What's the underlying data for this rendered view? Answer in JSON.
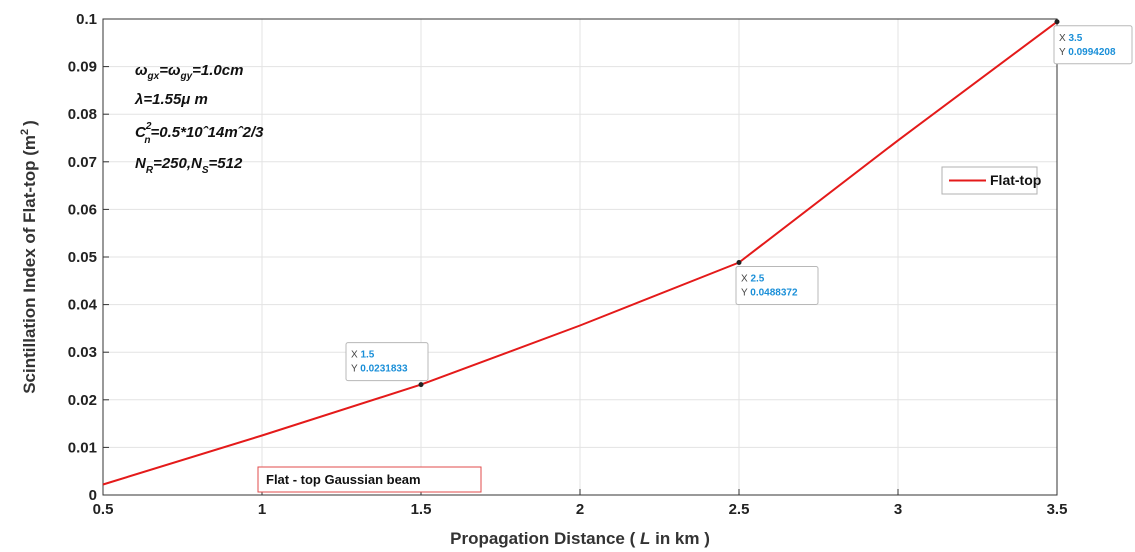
{
  "chart_data": {
    "type": "line",
    "xlabel_prefix": "Propagation Distance ( ",
    "xlabel_var": "L",
    "xlabel_suffix": " in  km )",
    "ylabel_main": "Scintillation Index of Flat-top (m",
    "ylabel_sup": "2",
    "ylabel_close": ")",
    "xlim": [
      0.5,
      3.5
    ],
    "ylim": [
      0,
      0.1
    ],
    "xticks": [
      0.5,
      1,
      1.5,
      2,
      2.5,
      3,
      3.5
    ],
    "xtick_labels": [
      "0.5",
      "1",
      "1.5",
      "2",
      "2.5",
      "3",
      "3.5"
    ],
    "yticks": [
      0,
      0.01,
      0.02,
      0.03,
      0.04,
      0.05,
      0.06,
      0.07,
      0.08,
      0.09,
      0.1
    ],
    "ytick_labels": [
      "0",
      "0.01",
      "0.02",
      "0.03",
      "0.04",
      "0.05",
      "0.06",
      "0.07",
      "0.08",
      "0.09",
      "0.1"
    ],
    "grid": true,
    "legend_position": "right",
    "series": [
      {
        "name": "Flat-top",
        "color": "#e41a1a",
        "x": [
          0.5,
          1.0,
          1.5,
          2.0,
          2.5,
          3.0,
          3.5
        ],
        "y": [
          0.0022,
          0.0125,
          0.0231833,
          0.0356,
          0.0488372,
          0.0745,
          0.0994208
        ]
      }
    ],
    "datatips": [
      {
        "x_key": "X",
        "x_val": "1.5",
        "y_key": "Y",
        "y_val": "0.0231833",
        "x": 1.5,
        "y": 0.0231833,
        "anchor": "above"
      },
      {
        "x_key": "X",
        "x_val": "2.5",
        "y_key": "Y",
        "y_val": "0.0488372",
        "x": 2.5,
        "y": 0.0488372,
        "anchor": "below"
      },
      {
        "x_key": "X",
        "x_val": "3.5",
        "y_key": "Y",
        "y_val": "0.0994208",
        "x": 3.5,
        "y": 0.0994208,
        "anchor": "below"
      }
    ],
    "annotations": {
      "line1": {
        "a": "ω",
        "a_sub": "gx",
        "b": "=ω",
        "b_sub": "gy",
        "c": "=1.0cm"
      },
      "line2": "λ=1.55μ m",
      "line3": {
        "a": "C",
        "a_sup": "2",
        "a_sub": "n",
        "b": "=0.5*10ˆ14mˆ2/3"
      },
      "line4": {
        "a": "N",
        "a_sub": "R",
        "b": "=250,N",
        "b_sub": "S",
        "c": "=512"
      }
    },
    "textbox": "Flat - top Gaussian beam"
  }
}
